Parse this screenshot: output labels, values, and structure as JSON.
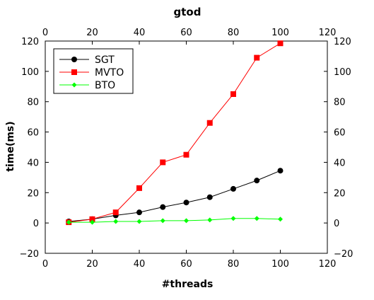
{
  "chart_data": {
    "type": "line",
    "title": "gtod",
    "xlabel": "#threads",
    "ylabel": "time(ms)",
    "xlim": [
      0,
      120
    ],
    "ylim": [
      -20,
      120
    ],
    "xticks": [
      0,
      20,
      40,
      60,
      80,
      100,
      120
    ],
    "yticks": [
      -20,
      0,
      20,
      40,
      60,
      80,
      100,
      120
    ],
    "tick_labels": {
      "x": [
        "0",
        "20",
        "40",
        "60",
        "80",
        "100",
        "120"
      ],
      "y": [
        "−20",
        "0",
        "20",
        "40",
        "60",
        "80",
        "100",
        "120"
      ]
    },
    "grid": false,
    "legend_position": "top-left",
    "x": [
      10,
      20,
      30,
      40,
      50,
      60,
      70,
      80,
      90,
      100
    ],
    "series": [
      {
        "name": "SGT",
        "color": "#000000",
        "marker": "circle",
        "values": [
          1,
          2.5,
          5,
          7,
          10.5,
          13.5,
          17,
          22.5,
          28,
          34.5
        ]
      },
      {
        "name": "MVTO",
        "color": "#ff0000",
        "marker": "square",
        "values": [
          0.5,
          2.5,
          7,
          23,
          40,
          45,
          66,
          85,
          109,
          118.5
        ]
      },
      {
        "name": "BTO",
        "color": "#00ff00",
        "marker": "diamond",
        "values": [
          0.5,
          0.5,
          1,
          1,
          1.5,
          1.5,
          2,
          3,
          3,
          2.5
        ]
      }
    ]
  }
}
